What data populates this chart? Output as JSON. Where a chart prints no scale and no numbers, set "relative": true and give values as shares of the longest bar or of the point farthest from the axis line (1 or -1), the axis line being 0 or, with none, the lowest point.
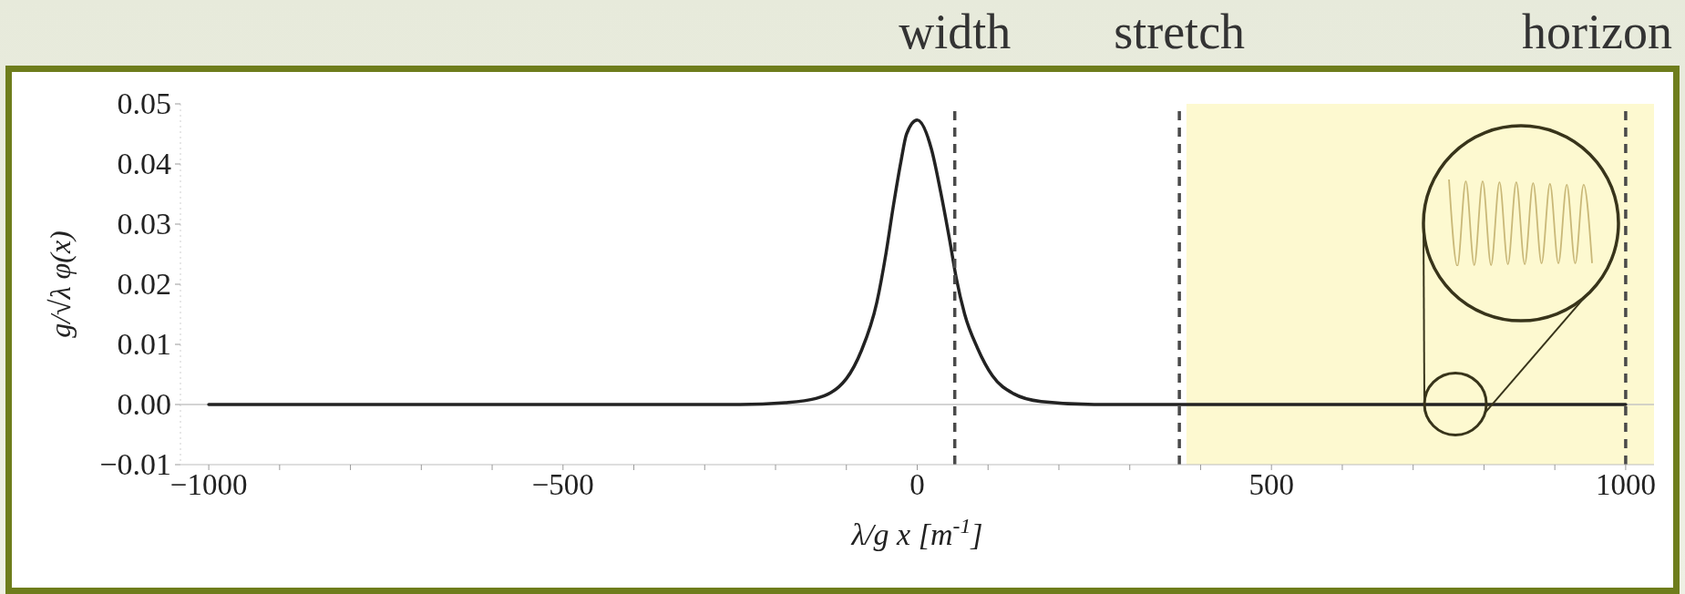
{
  "chart_data": [
    {
      "type": "line",
      "xlabel": "λ/g x  [m$^{-1}$]",
      "ylabel": "g/√λ φ(x)",
      "x": [
        -1000,
        -500,
        -300,
        -250,
        -186,
        -143,
        -100,
        -79,
        -57,
        -44,
        -34,
        -23,
        -15,
        0,
        20,
        33,
        46,
        55,
        67,
        85,
        106,
        136,
        175,
        250,
        300,
        370,
        500,
        700,
        1000
      ],
      "values": [
        0,
        0,
        0,
        0,
        0.0003,
        0.001,
        0.0043,
        0.0089,
        0.017,
        0.0252,
        0.0328,
        0.0404,
        0.045,
        0.0473,
        0.0425,
        0.0354,
        0.0272,
        0.0211,
        0.015,
        0.0094,
        0.0048,
        0.0018,
        0.0005,
        0,
        0,
        0,
        0,
        0,
        0
      ],
      "color": "#222222",
      "line_style": "solid",
      "xlim": [
        -1040,
        1040
      ],
      "xticks": [
        {
          "value": -1000,
          "label": "−1000"
        },
        {
          "value": -900,
          "label": null
        },
        {
          "value": -800,
          "label": null
        },
        {
          "value": -700,
          "label": null
        },
        {
          "value": -600,
          "label": null
        },
        {
          "value": -500,
          "label": "−500"
        },
        {
          "value": -400,
          "label": null
        },
        {
          "value": -300,
          "label": null
        },
        {
          "value": -200,
          "label": null
        },
        {
          "value": -100,
          "label": null
        },
        0,
        {
          "value": 100,
          "label": null
        },
        {
          "value": 200,
          "label": null
        },
        {
          "value": 300,
          "label": null
        },
        {
          "value": 400,
          "label": null
        },
        500,
        {
          "value": 600,
          "label": null
        },
        {
          "value": 700,
          "label": null
        },
        {
          "value": 800,
          "label": null
        },
        {
          "value": 900,
          "label": null
        },
        1000
      ],
      "ylim": [
        -0.01,
        0.05
      ],
      "yticks": [
        {
          "value": -0.01,
          "label": "−0.01"
        },
        {
          "value": 0,
          "label": "0.00"
        },
        0.01,
        0.02,
        0.03,
        0.04,
        0.05
      ],
      "ref_lines": [
        {
          "axis": "y",
          "value": 0,
          "color": "#c4c4c4"
        },
        {
          "axis": "x",
          "value": 53,
          "label": "width",
          "color": "#4a4a4a",
          "line_style": "dashed"
        },
        {
          "axis": "x",
          "value": 370,
          "label": "stretch",
          "color": "#4a4a4a",
          "line_style": "dashed"
        },
        {
          "axis": "x",
          "value": 1000,
          "label": "horizon",
          "color": "#4a4a4a",
          "line_style": "dashed"
        }
      ],
      "bands": [
        {
          "axis": "x",
          "from": 380,
          "to": 1040,
          "color": "#fdf9d0"
        }
      ]
    },
    {
      "type": "line",
      "relative": true,
      "categories": [
        null,
        null,
        null,
        null,
        null,
        null,
        null,
        null,
        null,
        null,
        null,
        null,
        null,
        null,
        null,
        null,
        null,
        null
      ],
      "values": [
        1,
        0,
        0.98,
        0.01,
        0.98,
        0.01,
        0.97,
        0.02,
        0.97,
        0.02,
        0.96,
        0.03,
        0.95,
        0.03,
        0.94,
        0.03,
        0.94,
        0.04
      ],
      "color": "#c9b878"
    }
  ]
}
